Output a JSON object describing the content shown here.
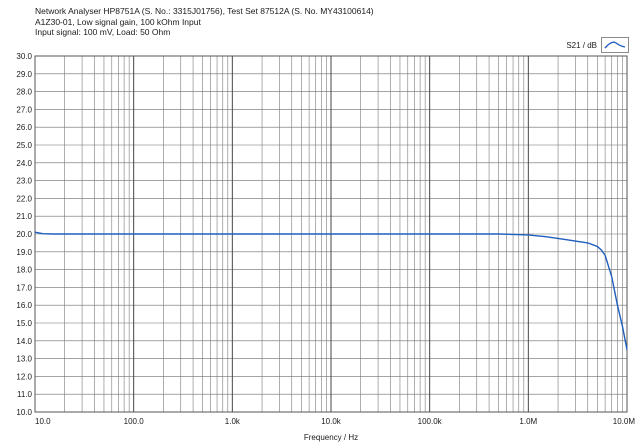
{
  "header": {
    "line1": "Network Analyser HP8751A (S. No.: 3315J01756), Test Set 87512A (S. No. MY43100614)",
    "line2": "A1Z30-01, Low signal gain, 100 kOhm Input",
    "line3": "Input signal: 100 mV, Load: 50 Ohm"
  },
  "legend": {
    "label": "S21 / dB",
    "color": "#1f5fbf"
  },
  "chart_data": {
    "type": "line",
    "title": "",
    "xlabel": "Frequency / Hz",
    "ylabel": "",
    "x_scale": "log",
    "xlim": [
      10,
      10000000
    ],
    "ylim": [
      10,
      30
    ],
    "grid": true,
    "legend_position": "top-right",
    "x_tick_labels": [
      "10.0",
      "100.0",
      "1.0k",
      "10.0k",
      "100.0k",
      "1.0M",
      "10.0M"
    ],
    "y_tick_labels": [
      "10.0",
      "11.0",
      "12.0",
      "13.0",
      "14.0",
      "15.0",
      "16.0",
      "17.0",
      "18.0",
      "19.0",
      "20.0",
      "21.0",
      "22.0",
      "23.0",
      "24.0",
      "25.0",
      "26.0",
      "27.0",
      "28.0",
      "29.0",
      "30.0"
    ],
    "series": [
      {
        "name": "S21 / dB",
        "color": "#1f5fbf",
        "x": [
          10,
          12,
          15,
          20,
          50,
          100,
          1000,
          10000,
          100000,
          500000,
          1000000,
          1500000,
          2000000,
          3000000,
          4000000,
          5000000,
          5500000,
          6000000,
          7000000,
          8000000,
          9000000,
          10000000
        ],
        "y": [
          20.1,
          20.02,
          20.0,
          20.0,
          20.0,
          20.0,
          20.0,
          20.0,
          20.0,
          20.0,
          19.95,
          19.85,
          19.75,
          19.6,
          19.5,
          19.3,
          19.1,
          18.8,
          17.6,
          16.0,
          14.8,
          13.5
        ]
      }
    ]
  }
}
